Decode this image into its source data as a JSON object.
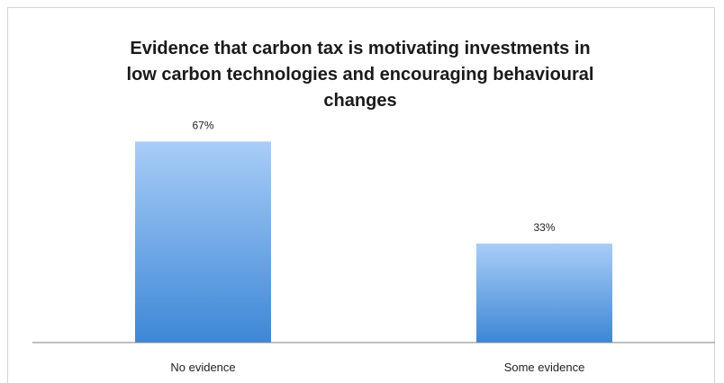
{
  "chart_data": {
    "type": "bar",
    "title_lines": [
      "Evidence that carbon tax is motivating investments in",
      "low carbon technologies and encouraging behavioural",
      "changes"
    ],
    "categories": [
      "No evidence",
      "Some evidence"
    ],
    "values": [
      67,
      33
    ],
    "data_labels": [
      "67%",
      "33%"
    ],
    "unit": "%",
    "ylim": [
      0,
      80
    ],
    "grid": false,
    "legend": "none",
    "colors": {
      "bar_top": "#a9cdf7",
      "bar_bottom": "#3d87d6",
      "axis": "#808080"
    }
  }
}
